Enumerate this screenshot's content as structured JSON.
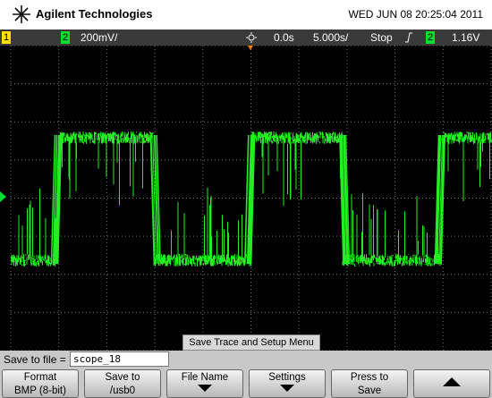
{
  "header": {
    "brand": "Agilent Technologies",
    "datetime": "WED JUN 08 20:25:04 2011"
  },
  "status_bar": {
    "channel1": "1",
    "channel2": "2",
    "scale": "200mV/",
    "time_offset": "0.0s",
    "time_scale": "5.000s/",
    "run_state": "Stop",
    "trigger_channel": "2",
    "trigger_level": "1.16V"
  },
  "menu": {
    "title": "Save Trace and Setup Menu",
    "file_label": "Save to file =",
    "file_name": "scope_18",
    "softkeys": [
      {
        "line1": "Format",
        "line2": "BMP (8-bit)"
      },
      {
        "line1": "Save to",
        "line2": "/usb0"
      },
      {
        "line1": "File Name"
      },
      {
        "line1": "Settings"
      },
      {
        "line1": "Press to",
        "line2": "Save"
      }
    ]
  }
}
